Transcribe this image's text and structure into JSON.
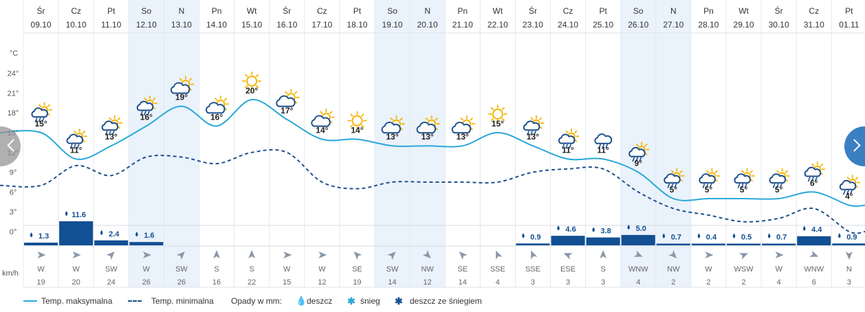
{
  "days": [
    {
      "dow": "Śr",
      "date": "09.10",
      "max": 15,
      "min": 7,
      "icon": "cloud-rain-sun",
      "precip": 1.3,
      "precip_label": "1.3",
      "wind_dir": "W",
      "wind_speed": 19,
      "wind_deg": 270,
      "weekend": false
    },
    {
      "dow": "Cz",
      "date": "10.10",
      "max": 11,
      "min": 10,
      "icon": "cloud-rain-sun",
      "precip": 11.6,
      "precip_label": "11.6",
      "wind_dir": "W",
      "wind_speed": 20,
      "wind_deg": 270,
      "weekend": false
    },
    {
      "dow": "Pt",
      "date": "11.10",
      "max": 13,
      "min": 8.5,
      "icon": "cloud-rain-sun",
      "precip": 2.4,
      "precip_label": "2.4",
      "wind_dir": "SW",
      "wind_speed": 24,
      "wind_deg": 225,
      "weekend": false
    },
    {
      "dow": "So",
      "date": "12.10",
      "max": 16,
      "min": 11.3,
      "icon": "cloud-rain-sun",
      "precip": 1.6,
      "precip_label": "1.6",
      "wind_dir": "W",
      "wind_speed": 26,
      "wind_deg": 270,
      "weekend": true
    },
    {
      "dow": "N",
      "date": "13.10",
      "max": 19,
      "min": 11.3,
      "icon": "partly-cloudy",
      "precip": 0,
      "precip_label": "",
      "wind_dir": "SW",
      "wind_speed": 26,
      "wind_deg": 225,
      "weekend": true
    },
    {
      "dow": "Pn",
      "date": "14.10",
      "max": 16,
      "min": 10.3,
      "icon": "partly-cloudy",
      "precip": 0,
      "precip_label": "",
      "wind_dir": "S",
      "wind_speed": 16,
      "wind_deg": 180,
      "weekend": false
    },
    {
      "dow": "Wt",
      "date": "15.10",
      "max": 20,
      "min": 12,
      "icon": "sunny",
      "precip": 0,
      "precip_label": "",
      "wind_dir": "S",
      "wind_speed": 22,
      "wind_deg": 180,
      "weekend": false
    },
    {
      "dow": "Śr",
      "date": "16.10",
      "max": 17,
      "min": 12,
      "icon": "partly-cloudy",
      "precip": 0,
      "precip_label": "",
      "wind_dir": "W",
      "wind_speed": 15,
      "wind_deg": 270,
      "weekend": false
    },
    {
      "dow": "Cz",
      "date": "17.10",
      "max": 14,
      "min": 7.5,
      "icon": "partly-cloudy",
      "precip": 0,
      "precip_label": "",
      "wind_dir": "W",
      "wind_speed": 12,
      "wind_deg": 270,
      "weekend": false
    },
    {
      "dow": "Pt",
      "date": "18.10",
      "max": 14,
      "min": 6.5,
      "icon": "sunny",
      "precip": 0,
      "precip_label": "",
      "wind_dir": "SE",
      "wind_speed": 19,
      "wind_deg": 135,
      "weekend": false
    },
    {
      "dow": "So",
      "date": "19.10",
      "max": 13,
      "min": 7.5,
      "icon": "partly-cloudy",
      "precip": 0,
      "precip_label": "",
      "wind_dir": "SW",
      "wind_speed": 14,
      "wind_deg": 225,
      "weekend": true
    },
    {
      "dow": "N",
      "date": "20.10",
      "max": 13,
      "min": 7.5,
      "icon": "partly-cloudy",
      "precip": 0,
      "precip_label": "",
      "wind_dir": "NW",
      "wind_speed": 12,
      "wind_deg": 315,
      "weekend": true
    },
    {
      "dow": "Pn",
      "date": "21.10",
      "max": 13,
      "min": 7.5,
      "icon": "partly-cloudy",
      "precip": 0,
      "precip_label": "",
      "wind_dir": "SE",
      "wind_speed": 14,
      "wind_deg": 135,
      "weekend": false
    },
    {
      "dow": "Wt",
      "date": "22.10",
      "max": 15,
      "min": 7.5,
      "icon": "sunny",
      "precip": 0,
      "precip_label": "",
      "wind_dir": "SSE",
      "wind_speed": 4,
      "wind_deg": 157.5,
      "weekend": false
    },
    {
      "dow": "Śr",
      "date": "23.10",
      "max": 13,
      "min": 9,
      "icon": "cloud-rain-sun",
      "precip": 0.9,
      "precip_label": "0.9",
      "wind_dir": "SSE",
      "wind_speed": 3,
      "wind_deg": 157.5,
      "weekend": false
    },
    {
      "dow": "Cz",
      "date": "24.10",
      "max": 11,
      "min": 9.5,
      "icon": "cloud-rain-sun",
      "precip": 4.6,
      "precip_label": "4.6",
      "wind_dir": "ESE",
      "wind_speed": 3,
      "wind_deg": 112.5,
      "weekend": false
    },
    {
      "dow": "Pt",
      "date": "25.10",
      "max": 11,
      "min": 9.5,
      "icon": "cloud-rain",
      "precip": 3.8,
      "precip_label": "3.8",
      "wind_dir": "S",
      "wind_speed": 3,
      "wind_deg": 180,
      "weekend": false
    },
    {
      "dow": "So",
      "date": "26.10",
      "max": 9,
      "min": 6,
      "icon": "cloud-rain-sun",
      "precip": 5.0,
      "precip_label": "5.0",
      "wind_dir": "WNW",
      "wind_speed": 4,
      "wind_deg": 292.5,
      "weekend": true
    },
    {
      "dow": "N",
      "date": "27.10",
      "max": 5,
      "min": 3.5,
      "icon": "cloud-rain-sun",
      "precip": 0.7,
      "precip_label": "0.7",
      "wind_dir": "NW",
      "wind_speed": 2,
      "wind_deg": 315,
      "weekend": true
    },
    {
      "dow": "Pn",
      "date": "28.10",
      "max": 5,
      "min": 2.5,
      "icon": "cloud-rain-sun",
      "precip": 0.4,
      "precip_label": "0.4",
      "wind_dir": "W",
      "wind_speed": 2,
      "wind_deg": 270,
      "weekend": false
    },
    {
      "dow": "Wt",
      "date": "29.10",
      "max": 5,
      "min": 1.5,
      "icon": "cloud-rain-sun",
      "precip": 0.5,
      "precip_label": "0.5",
      "wind_dir": "WSW",
      "wind_speed": 2,
      "wind_deg": 247.5,
      "weekend": false
    },
    {
      "dow": "Śr",
      "date": "30.10",
      "max": 5,
      "min": 2,
      "icon": "cloud-rain-sun",
      "precip": 0.7,
      "precip_label": "0.7",
      "wind_dir": "W",
      "wind_speed": 4,
      "wind_deg": 270,
      "weekend": false
    },
    {
      "dow": "Cz",
      "date": "31.10",
      "max": 6,
      "min": 3.5,
      "icon": "cloud-rain-sun",
      "precip": 4.4,
      "precip_label": "4.4",
      "wind_dir": "WNW",
      "wind_speed": 6,
      "wind_deg": 292.5,
      "weekend": false
    },
    {
      "dow": "Pt",
      "date": "01.11",
      "max": 4,
      "min": 0,
      "icon": "cloud-rain-sun",
      "precip": 0.9,
      "precip_label": "0.9",
      "wind_dir": "N",
      "wind_speed": 3,
      "wind_deg": 0,
      "weekend": false
    }
  ],
  "chart_data": {
    "type": "line",
    "x": [
      "09.10",
      "10.10",
      "11.10",
      "12.10",
      "13.10",
      "14.10",
      "15.10",
      "16.10",
      "17.10",
      "18.10",
      "19.10",
      "20.10",
      "21.10",
      "22.10",
      "23.10",
      "24.10",
      "25.10",
      "26.10",
      "27.10",
      "28.10",
      "29.10",
      "30.10",
      "31.10",
      "01.11"
    ],
    "series": [
      {
        "name": "Temp. maksymalna",
        "values": [
          15,
          11,
          13,
          16,
          19,
          16,
          20,
          17,
          14,
          14,
          13,
          13,
          13,
          15,
          13,
          11,
          11,
          9,
          5,
          5,
          5,
          5,
          6,
          4
        ],
        "style": "solid"
      },
      {
        "name": "Temp. minimalna",
        "values": [
          7,
          10,
          8.5,
          11.3,
          11.3,
          10.3,
          12,
          12,
          7.5,
          6.5,
          7.5,
          7.5,
          7.5,
          7.5,
          9,
          9.5,
          9.5,
          6,
          3.5,
          2.5,
          1.5,
          2,
          3.5,
          0
        ],
        "style": "dashed"
      }
    ],
    "precipitation_mm": [
      1.3,
      11.6,
      2.4,
      1.6,
      0,
      0,
      0,
      0,
      0,
      0,
      0,
      0,
      0,
      0,
      0.9,
      4.6,
      3.8,
      5.0,
      0.7,
      0.4,
      0.5,
      0.7,
      4.4,
      0.9
    ],
    "wind_speed_kmh": [
      19,
      20,
      24,
      26,
      26,
      16,
      22,
      15,
      12,
      19,
      14,
      12,
      14,
      4,
      3,
      3,
      3,
      4,
      2,
      2,
      2,
      4,
      6,
      3
    ],
    "wind_direction": [
      "W",
      "W",
      "SW",
      "W",
      "SW",
      "S",
      "S",
      "W",
      "W",
      "SE",
      "SW",
      "NW",
      "SE",
      "SSE",
      "SSE",
      "ESE",
      "S",
      "WNW",
      "NW",
      "W",
      "WSW",
      "W",
      "WNW",
      "N"
    ],
    "y_axis_unit": "°C",
    "y_ticks": [
      0,
      3,
      6,
      9,
      12,
      15,
      18,
      21,
      24
    ],
    "ylim": [
      -1,
      27
    ],
    "wind_unit": "km/h",
    "grid": true,
    "legend_position": "bottom-left"
  },
  "legend": {
    "max_label": "Temp. maksymalna",
    "min_label": "Temp. minimalna",
    "precip_title": "Opady w mm:",
    "rain_label": "deszcz",
    "snow_label": "śnieg",
    "rain_snow_label": "deszcz ze śniegiem"
  },
  "colors": {
    "max_line": "#29a8d8",
    "min_line": "#1f4f8f",
    "precip_bar": "#124f93",
    "weekend_bg": "#eaf2fb",
    "sun": "#f5b400",
    "cloud": "#1c4e8a",
    "arrow": "#8a97a6",
    "nav_right": "#3a7fc1"
  }
}
